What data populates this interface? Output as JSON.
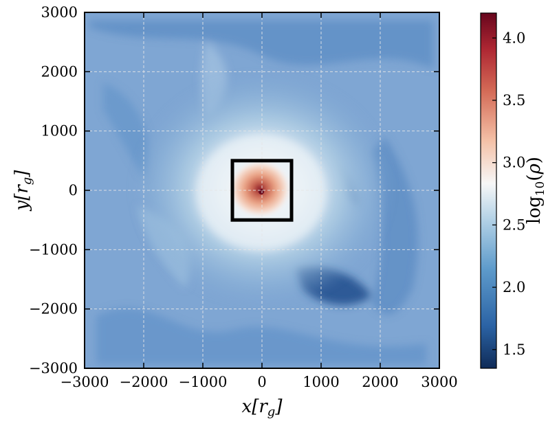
{
  "chart_data": {
    "type": "heatmap",
    "title": "",
    "xlabel": "x[r_g]",
    "ylabel": "y[r_g]",
    "xlim": [
      -3000,
      3000
    ],
    "ylim": [
      -3000,
      3000
    ],
    "x_ticks": [
      -3000,
      -2000,
      -1000,
      0,
      1000,
      2000,
      3000
    ],
    "y_ticks": [
      -3000,
      -2000,
      -1000,
      0,
      1000,
      2000,
      3000
    ],
    "x_tick_labels": [
      "−3000",
      "−2000",
      "−1000",
      "0",
      "1000",
      "2000",
      "3000"
    ],
    "y_tick_labels": [
      "−3000",
      "−2000",
      "−1000",
      "0",
      "1000",
      "2000",
      "3000"
    ],
    "grid": true,
    "colormap": "RdBu_r",
    "colorbar": {
      "label": "log10(ρ)",
      "range": [
        1.35,
        4.2
      ],
      "ticks": [
        1.5,
        2.0,
        2.5,
        3.0,
        3.5,
        4.0
      ],
      "tick_labels": [
        "1.5",
        "2.0",
        "2.5",
        "3.0",
        "3.5",
        "4.0"
      ]
    },
    "annotation_box": {
      "x": [
        -500,
        500
      ],
      "y": [
        -500,
        500
      ],
      "color": "#000000"
    },
    "colors": {
      "low": "#1a3a6e",
      "mid": "#f7f7f7",
      "high": "#6b0b1e",
      "background_field": "#7fa6d3"
    }
  }
}
